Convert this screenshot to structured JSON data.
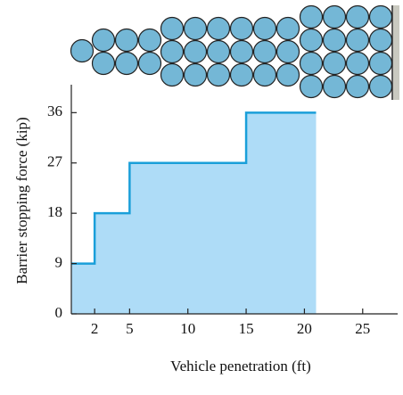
{
  "chart_data": {
    "type": "area",
    "x_label": "Vehicle penetration (ft)",
    "y_label": "Barrier stopping force (kip)",
    "x": [
      0,
      2,
      2,
      5,
      5,
      15,
      15,
      21
    ],
    "values": [
      9,
      9,
      18,
      18,
      27,
      27,
      36,
      36
    ],
    "color": "#1a9fd9",
    "fill": "#aedcf7",
    "xlim": [
      0,
      28
    ],
    "ylim": [
      0,
      41
    ],
    "xticks": [
      2,
      5,
      10,
      15,
      20,
      25
    ],
    "yticks": [
      0,
      9,
      18,
      27,
      36
    ]
  }
}
